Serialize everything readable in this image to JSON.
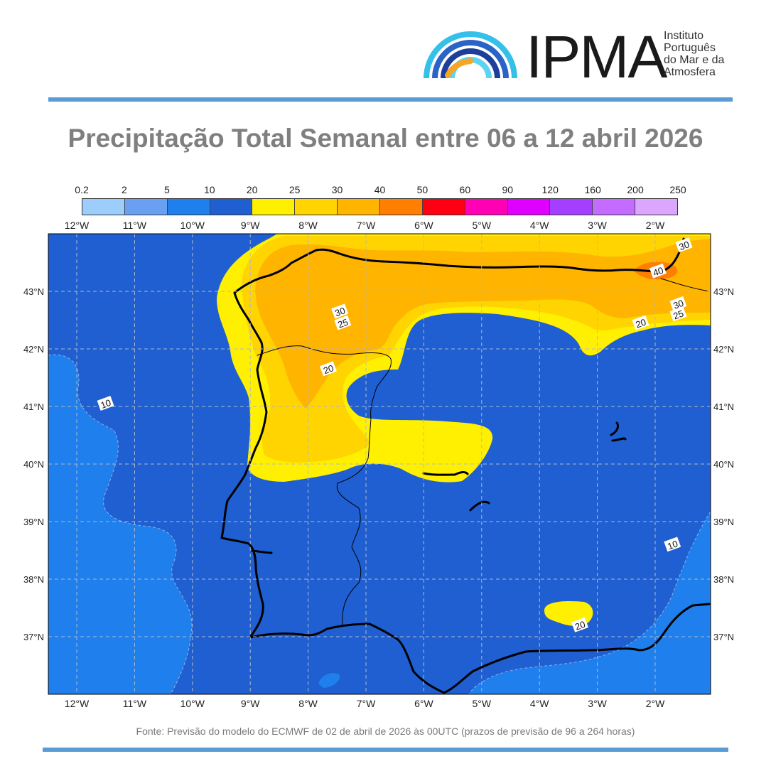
{
  "header": {
    "logo_abbr": "IPMA",
    "logo_name_lines": [
      "Instituto",
      "Português",
      "do Mar e da",
      "Atmosfera"
    ]
  },
  "title": "Precipitação Total Semanal entre 06 a 12 abril 2026",
  "colorbar": {
    "levels": [
      "0.2",
      "2",
      "5",
      "10",
      "20",
      "25",
      "30",
      "40",
      "50",
      "60",
      "90",
      "120",
      "160",
      "200",
      "250"
    ],
    "colors": [
      "#9dcdfb",
      "#6aa0f2",
      "#1e7fed",
      "#1f5fd1",
      "#ffef00",
      "#ffd400",
      "#ffb400",
      "#ff7f00",
      "#ff0012",
      "#ff00b4",
      "#e000ff",
      "#a43fff",
      "#c46cff",
      "#dca6ff"
    ]
  },
  "map": {
    "lon_labels": [
      "12°W",
      "11°W",
      "10°W",
      "9°W",
      "8°W",
      "7°W",
      "6°W",
      "5°W",
      "4°W",
      "3°W",
      "2°W"
    ],
    "lat_labels": [
      "43°N",
      "42°N",
      "41°N",
      "40°N",
      "39°N",
      "38°N",
      "37°N"
    ],
    "contour_labels": [
      {
        "text": "30",
        "lon": -7.45,
        "lat": 42.65
      },
      {
        "text": "25",
        "lon": -7.4,
        "lat": 42.45
      },
      {
        "text": "20",
        "lon": -7.65,
        "lat": 41.65
      },
      {
        "text": "30",
        "lon": -1.5,
        "lat": 43.8
      },
      {
        "text": "40",
        "lon": -1.95,
        "lat": 43.35
      },
      {
        "text": "30",
        "lon": -1.6,
        "lat": 42.78
      },
      {
        "text": "25",
        "lon": -1.6,
        "lat": 42.6
      },
      {
        "text": "20",
        "lon": -2.25,
        "lat": 42.45
      },
      {
        "text": "10",
        "lon": -11.5,
        "lat": 41.05
      },
      {
        "text": "10",
        "lon": -1.7,
        "lat": 38.6
      },
      {
        "text": "20",
        "lon": -3.3,
        "lat": 37.2
      }
    ]
  },
  "source": "Fonte: Previsão do modelo do ECMWF de 02 de abril de 2026 às 00UTC (prazos de previsão de 96 a 264 horas)"
}
